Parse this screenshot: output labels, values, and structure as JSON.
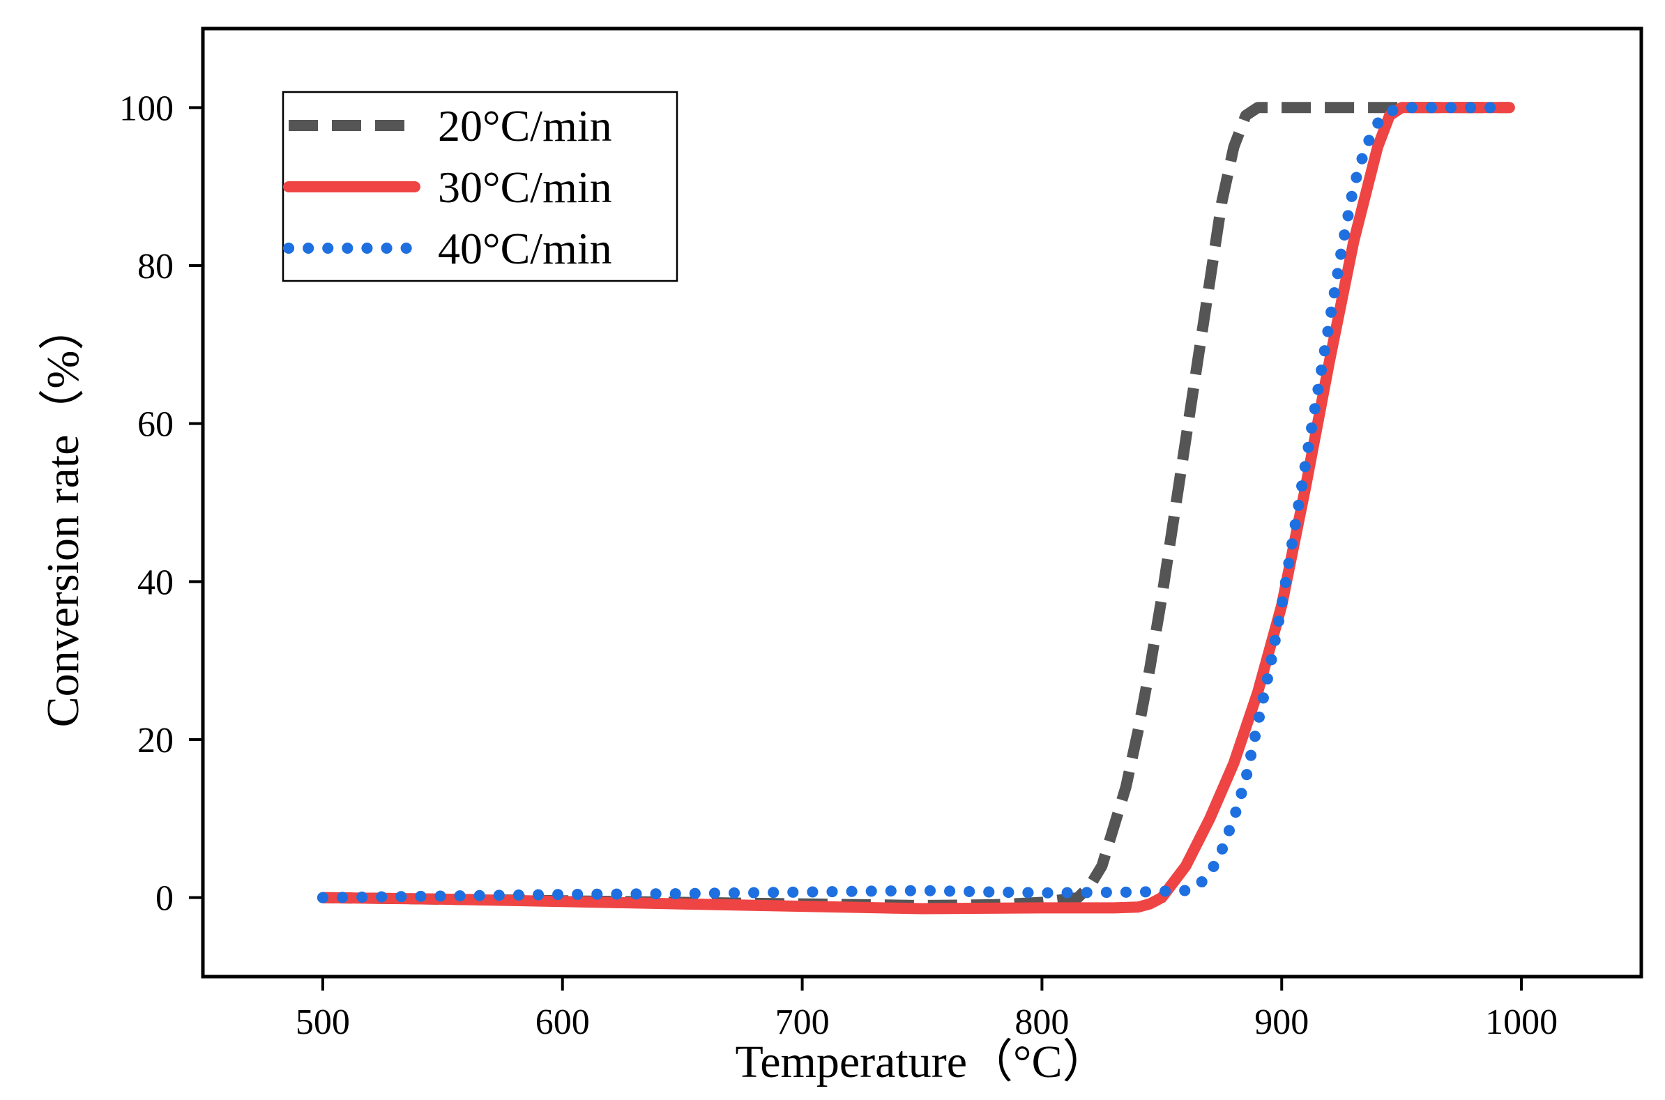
{
  "chart_data": {
    "type": "line",
    "title": "",
    "xlabel": "Temperature（°C）",
    "ylabel": "Conversion rate（%）",
    "xlim": [
      450,
      1050
    ],
    "ylim": [
      -10,
      110
    ],
    "xticks": [
      500,
      600,
      700,
      800,
      900,
      1000
    ],
    "yticks": [
      0,
      20,
      40,
      60,
      80,
      100
    ],
    "grid": false,
    "legend_position": "top-left",
    "series": [
      {
        "name": "20°C/min",
        "color": "#555555",
        "style": "dashed",
        "x": [
          500,
          550,
          600,
          650,
          700,
          750,
          780,
          800,
          815,
          820,
          825,
          830,
          835,
          840,
          845,
          850,
          855,
          860,
          865,
          870,
          875,
          880,
          885,
          890,
          900,
          950,
          995
        ],
        "y": [
          0,
          -0.2,
          -0.4,
          -0.6,
          -0.8,
          -1.0,
          -0.9,
          -0.6,
          0,
          1.5,
          4,
          9,
          14,
          21,
          29,
          38,
          48,
          58,
          68,
          78,
          88,
          95,
          99,
          100,
          100,
          100,
          100
        ]
      },
      {
        "name": "30°C/min",
        "color": "#ef4444",
        "style": "solid",
        "x": [
          500,
          550,
          600,
          650,
          700,
          750,
          800,
          830,
          840,
          845,
          850,
          855,
          860,
          870,
          880,
          890,
          900,
          910,
          920,
          930,
          940,
          945,
          950,
          995
        ],
        "y": [
          0,
          -0.2,
          -0.5,
          -0.8,
          -1.1,
          -1.4,
          -1.3,
          -1.3,
          -1.2,
          -0.8,
          0,
          2,
          4,
          10,
          17,
          26,
          37,
          52,
          68,
          83,
          95,
          99,
          100,
          100
        ]
      },
      {
        "name": "40°C/min",
        "color": "#1e6fe0",
        "style": "dotted",
        "x": [
          500,
          550,
          600,
          650,
          700,
          750,
          780,
          800,
          840,
          860,
          865,
          870,
          875,
          880,
          885,
          890,
          895,
          900,
          905,
          910,
          915,
          920,
          925,
          930,
          935,
          940,
          945,
          950,
          995
        ],
        "y": [
          0,
          0.2,
          0.4,
          0.5,
          0.7,
          0.9,
          0.7,
          0.6,
          0.7,
          0.9,
          1.5,
          3,
          6,
          10,
          15,
          22,
          29,
          37,
          46,
          55,
          64,
          73,
          82,
          90,
          95,
          98,
          99.5,
          100,
          100
        ]
      }
    ]
  }
}
